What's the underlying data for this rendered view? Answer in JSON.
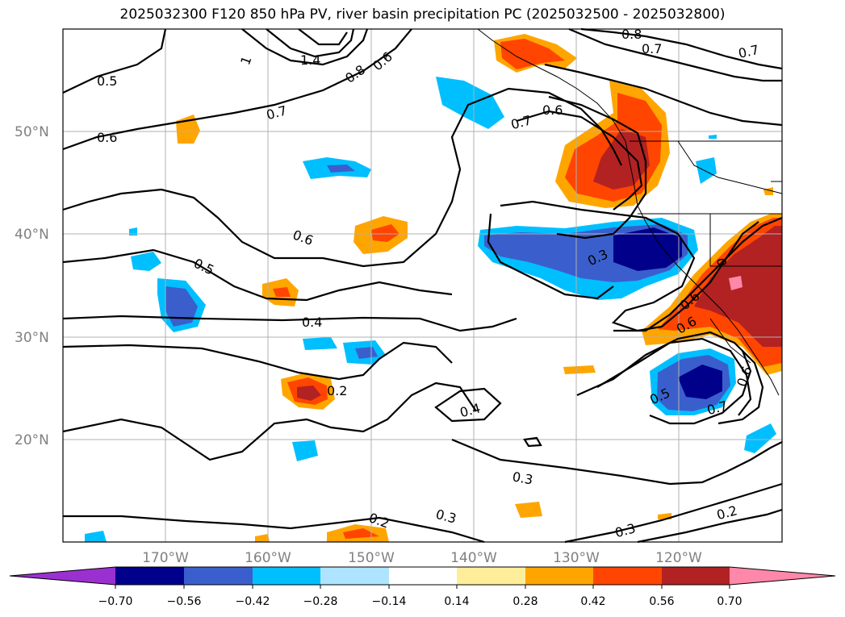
{
  "title": "2025032300 F120 850 hPa PV, river basin precipitation PC (2025032500 - 2025032800)",
  "map": {
    "lat_ticks": [
      "50°N",
      "40°N",
      "30°N",
      "20°N"
    ],
    "lon_ticks": [
      "170°W",
      "160°W",
      "150°W",
      "140°W",
      "130°W",
      "120°W"
    ],
    "contour_labels": [
      "0.5",
      "0.6",
      "1",
      "1.4",
      "0.8",
      "0.6",
      "0.7",
      "0.8",
      "0.7",
      "0.7",
      "0.6",
      "0.7",
      "0.6",
      "0.5",
      "0.4",
      "0.3",
      "0.6",
      "0",
      "0.6",
      "0.2",
      "0.4",
      "0.5",
      "0.7",
      "0.6",
      "0.3",
      "0.3",
      "0.2",
      "0.3",
      "0.2"
    ]
  },
  "colorbar": {
    "ticks": [
      "−0.70",
      "−0.56",
      "−0.42",
      "−0.28",
      "−0.14",
      "0.14",
      "0.28",
      "0.42",
      "0.56",
      "0.70"
    ],
    "colors": [
      "#9b30d0",
      "#00008b",
      "#3a5fcd",
      "#00bfff",
      "#aee4ff",
      "#ffffff",
      "#ffee99",
      "#ffa500",
      "#ff4500",
      "#b22222",
      "#ff88aa"
    ]
  },
  "colors": {
    "grid": "#b0b0b0",
    "contour": "#000000",
    "tick_text": "#808080"
  }
}
